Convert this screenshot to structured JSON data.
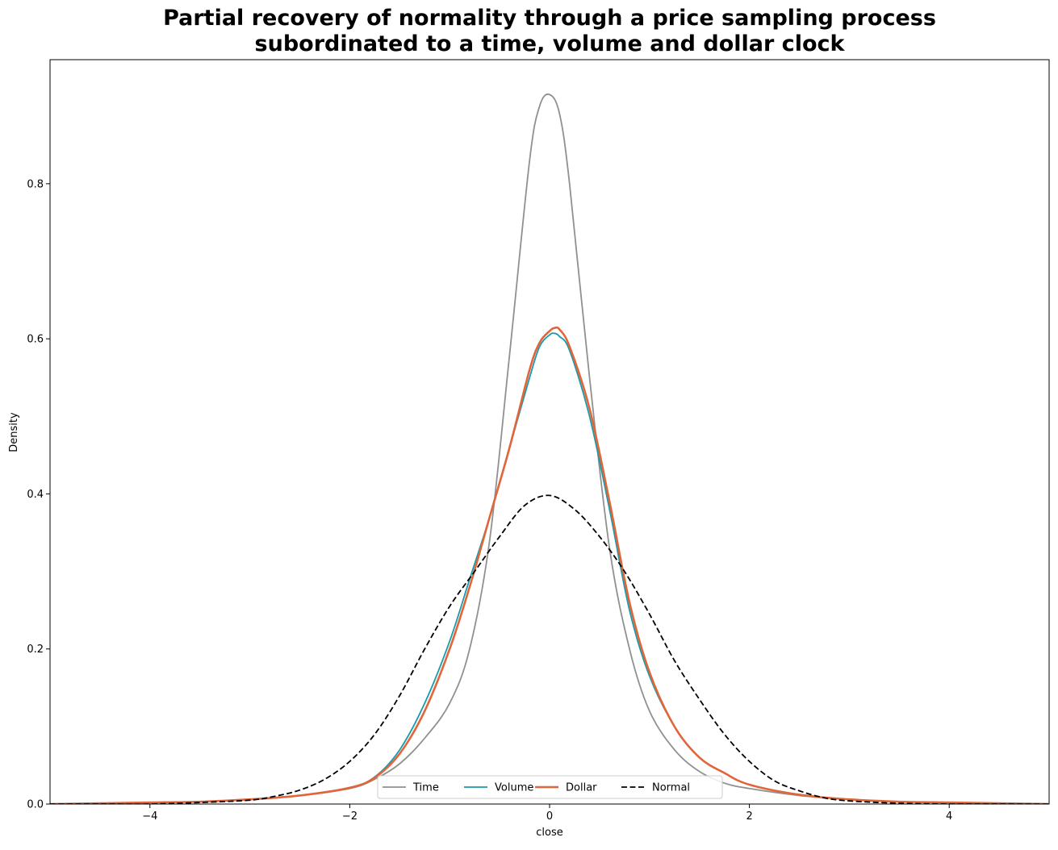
{
  "chart_data": {
    "type": "line",
    "title_lines": [
      "Partial recovery of normality through a price sampling process",
      "subordinated to a time, volume and dollar clock"
    ],
    "xlabel": "close",
    "ylabel": "Density",
    "xlim": [
      -5,
      5
    ],
    "ylim": [
      0,
      0.96
    ],
    "x_ticks": [
      -4,
      -2,
      0,
      2,
      4
    ],
    "x_tick_labels": [
      "−4",
      "−2",
      "0",
      "2",
      "4"
    ],
    "y_ticks": [
      0.0,
      0.2,
      0.4,
      0.6,
      0.8
    ],
    "y_tick_labels": [
      "0.0",
      "0.2",
      "0.4",
      "0.6",
      "0.8"
    ],
    "grid": false,
    "legend": {
      "placement": "bottom-center",
      "columns": 4
    },
    "series": [
      {
        "name": "Time",
        "color": "#909090",
        "dash": "solid",
        "points": [
          [
            -5,
            0.0
          ],
          [
            -4.5,
            0.001
          ],
          [
            -4,
            0.002
          ],
          [
            -3.5,
            0.003
          ],
          [
            -3,
            0.006
          ],
          [
            -2.5,
            0.011
          ],
          [
            -2,
            0.02
          ],
          [
            -1.75,
            0.032
          ],
          [
            -1.5,
            0.052
          ],
          [
            -1.25,
            0.085
          ],
          [
            -1.0,
            0.13
          ],
          [
            -0.8,
            0.2
          ],
          [
            -0.6,
            0.34
          ],
          [
            -0.4,
            0.58
          ],
          [
            -0.2,
            0.83
          ],
          [
            -0.1,
            0.9
          ],
          [
            0.0,
            0.915
          ],
          [
            0.1,
            0.89
          ],
          [
            0.2,
            0.8
          ],
          [
            0.4,
            0.55
          ],
          [
            0.6,
            0.33
          ],
          [
            0.8,
            0.2
          ],
          [
            1.0,
            0.12
          ],
          [
            1.25,
            0.07
          ],
          [
            1.5,
            0.042
          ],
          [
            1.75,
            0.027
          ],
          [
            2.0,
            0.02
          ],
          [
            2.5,
            0.011
          ],
          [
            3.0,
            0.006
          ],
          [
            3.5,
            0.003
          ],
          [
            4.0,
            0.002
          ],
          [
            4.5,
            0.001
          ],
          [
            5.0,
            0.0
          ]
        ]
      },
      {
        "name": "Volume",
        "color": "#1a9aaa",
        "dash": "solid",
        "points": [
          [
            -5,
            0.0
          ],
          [
            -4.5,
            0.001
          ],
          [
            -4,
            0.002
          ],
          [
            -3.5,
            0.003
          ],
          [
            -3,
            0.006
          ],
          [
            -2.5,
            0.011
          ],
          [
            -2,
            0.021
          ],
          [
            -1.75,
            0.035
          ],
          [
            -1.5,
            0.07
          ],
          [
            -1.25,
            0.13
          ],
          [
            -1.0,
            0.21
          ],
          [
            -0.8,
            0.29
          ],
          [
            -0.6,
            0.37
          ],
          [
            -0.4,
            0.46
          ],
          [
            -0.2,
            0.55
          ],
          [
            -0.1,
            0.59
          ],
          [
            0.0,
            0.605
          ],
          [
            0.05,
            0.607
          ],
          [
            0.1,
            0.603
          ],
          [
            0.2,
            0.585
          ],
          [
            0.4,
            0.5
          ],
          [
            0.6,
            0.38
          ],
          [
            0.8,
            0.25
          ],
          [
            1.0,
            0.165
          ],
          [
            1.25,
            0.1
          ],
          [
            1.5,
            0.06
          ],
          [
            1.75,
            0.04
          ],
          [
            2.0,
            0.025
          ],
          [
            2.5,
            0.012
          ],
          [
            3.0,
            0.006
          ],
          [
            3.5,
            0.003
          ],
          [
            4.0,
            0.002
          ],
          [
            4.5,
            0.001
          ],
          [
            5.0,
            0.0
          ]
        ]
      },
      {
        "name": "Dollar",
        "color": "#e0663a",
        "dash": "solid",
        "points": [
          [
            -5,
            0.0
          ],
          [
            -4.5,
            0.001
          ],
          [
            -4,
            0.002
          ],
          [
            -3.5,
            0.003
          ],
          [
            -3,
            0.006
          ],
          [
            -2.5,
            0.011
          ],
          [
            -2,
            0.021
          ],
          [
            -1.75,
            0.034
          ],
          [
            -1.5,
            0.065
          ],
          [
            -1.25,
            0.12
          ],
          [
            -1.0,
            0.2
          ],
          [
            -0.8,
            0.28
          ],
          [
            -0.6,
            0.37
          ],
          [
            -0.4,
            0.46
          ],
          [
            -0.2,
            0.56
          ],
          [
            -0.1,
            0.595
          ],
          [
            0.0,
            0.61
          ],
          [
            0.05,
            0.614
          ],
          [
            0.1,
            0.612
          ],
          [
            0.2,
            0.59
          ],
          [
            0.4,
            0.51
          ],
          [
            0.6,
            0.39
          ],
          [
            0.8,
            0.26
          ],
          [
            1.0,
            0.17
          ],
          [
            1.25,
            0.1
          ],
          [
            1.5,
            0.06
          ],
          [
            1.75,
            0.04
          ],
          [
            2.0,
            0.025
          ],
          [
            2.5,
            0.012
          ],
          [
            3.0,
            0.006
          ],
          [
            3.5,
            0.003
          ],
          [
            4.0,
            0.002
          ],
          [
            4.5,
            0.001
          ],
          [
            5.0,
            0.0
          ]
        ]
      },
      {
        "name": "Normal",
        "color": "#000000",
        "dash": "dashed",
        "points": [
          [
            -5,
            0.0
          ],
          [
            -4.5,
            0.0
          ],
          [
            -4,
            0.0
          ],
          [
            -3.5,
            0.002
          ],
          [
            -3,
            0.005
          ],
          [
            -2.75,
            0.01
          ],
          [
            -2.5,
            0.018
          ],
          [
            -2.25,
            0.032
          ],
          [
            -2.0,
            0.055
          ],
          [
            -1.75,
            0.09
          ],
          [
            -1.5,
            0.14
          ],
          [
            -1.25,
            0.2
          ],
          [
            -1.0,
            0.255
          ],
          [
            -0.75,
            0.3
          ],
          [
            -0.5,
            0.345
          ],
          [
            -0.25,
            0.385
          ],
          [
            0.0,
            0.398
          ],
          [
            0.25,
            0.38
          ],
          [
            0.5,
            0.345
          ],
          [
            0.75,
            0.3
          ],
          [
            1.0,
            0.245
          ],
          [
            1.25,
            0.185
          ],
          [
            1.5,
            0.135
          ],
          [
            1.75,
            0.09
          ],
          [
            2.0,
            0.055
          ],
          [
            2.25,
            0.03
          ],
          [
            2.5,
            0.017
          ],
          [
            2.75,
            0.008
          ],
          [
            3.0,
            0.004
          ],
          [
            3.5,
            0.001
          ],
          [
            4.0,
            0.0
          ],
          [
            4.5,
            0.0
          ],
          [
            5.0,
            0.0
          ]
        ]
      }
    ]
  }
}
